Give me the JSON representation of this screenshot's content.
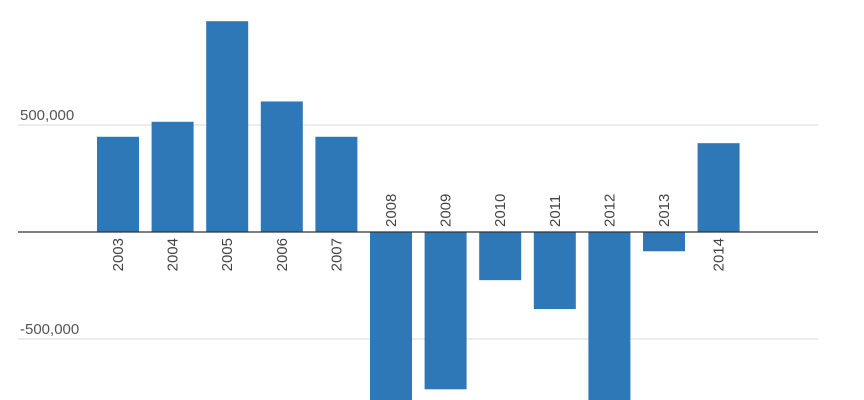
{
  "chart_data": {
    "type": "bar",
    "title": "",
    "xlabel": "",
    "ylabel": "",
    "categories": [
      "2003",
      "2004",
      "2005",
      "2006",
      "2007",
      "2008",
      "2009",
      "2010",
      "2011",
      "2012",
      "2013",
      "2014"
    ],
    "values": [
      445000,
      515000,
      985000,
      610000,
      445000,
      -790000,
      -735000,
      -225000,
      -360000,
      -790000,
      -90000,
      415000
    ],
    "y_ticks": [
      {
        "value": 500000,
        "label": "500,000"
      },
      {
        "value": -500000,
        "label": "-500,000"
      }
    ],
    "ylim": [
      -790000,
      1010000
    ],
    "grid": true,
    "legend": "none",
    "bar_color": "#2e78b7"
  }
}
